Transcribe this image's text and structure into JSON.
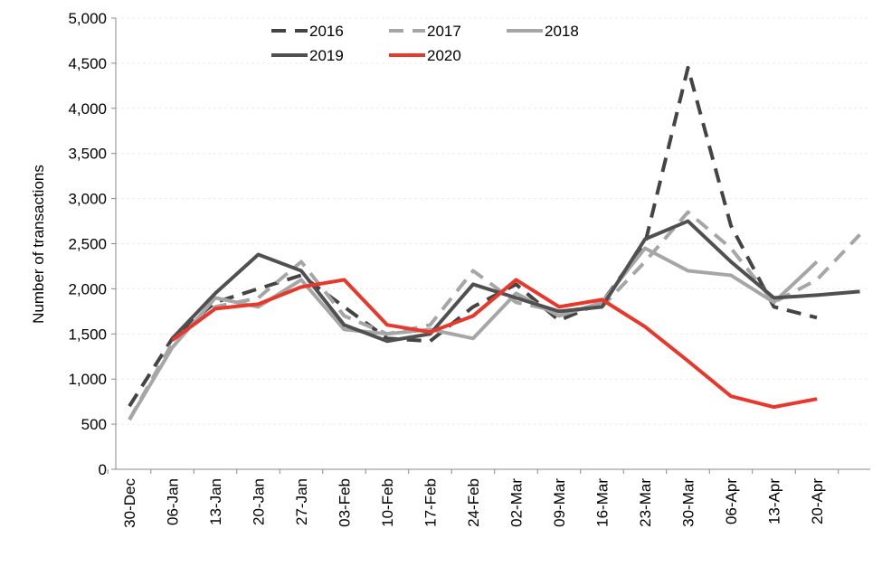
{
  "chart_data": {
    "type": "line",
    "y_label": "Number of transactions",
    "categories": [
      "30-Dec",
      "06-Jan",
      "13-Jan",
      "20-Jan",
      "27-Jan",
      "03-Feb",
      "10-Feb",
      "17-Feb",
      "24-Feb",
      "02-Mar",
      "09-Mar",
      "16-Mar",
      "23-Mar",
      "30-Mar",
      "06-Apr",
      "13-Apr",
      "20-Apr",
      null
    ],
    "series": [
      {
        "name": "2016",
        "color": "#444444",
        "dash": true,
        "values": [
          700,
          1450,
          1850,
          2000,
          2150,
          1800,
          1450,
          1420,
          1800,
          2050,
          1650,
          1850,
          2500,
          4450,
          2700,
          1800,
          1680,
          null
        ]
      },
      {
        "name": "2017",
        "color": "#a6a6a6",
        "dash": true,
        "values": [
          550,
          1400,
          1800,
          1900,
          2300,
          1700,
          1500,
          1600,
          2200,
          1850,
          1750,
          1800,
          2300,
          2850,
          2450,
          1850,
          2100,
          2600
        ]
      },
      {
        "name": "2018",
        "color": "#a6a6a6",
        "dash": false,
        "values": [
          550,
          1350,
          1900,
          1800,
          2100,
          1550,
          1500,
          1550,
          1450,
          1950,
          1700,
          1850,
          2450,
          2200,
          2150,
          1850,
          2300,
          null
        ]
      },
      {
        "name": "2019",
        "color": "#505050",
        "dash": false,
        "values": [
          null,
          1450,
          1950,
          2380,
          2200,
          1600,
          1420,
          1500,
          2050,
          1900,
          1750,
          1800,
          2550,
          2750,
          2300,
          1900,
          1930,
          1970
        ]
      },
      {
        "name": "2020",
        "color": "#e8382c",
        "dash": false,
        "values": [
          null,
          1430,
          1780,
          1830,
          2020,
          2100,
          1600,
          1520,
          1700,
          2100,
          1800,
          1880,
          1580,
          1200,
          810,
          690,
          780,
          null
        ]
      }
    ],
    "ylim": [
      0,
      5000
    ],
    "yticks": [
      0,
      {
        "value": 500,
        "label": "500"
      },
      {
        "value": 1000,
        "label": "1,000"
      },
      {
        "value": 1500,
        "label": "1,500"
      },
      {
        "value": 2000,
        "label": "2,000"
      },
      {
        "value": 2500,
        "label": "2,500"
      },
      {
        "value": 3000,
        "label": "3,000"
      },
      {
        "value": 3500,
        "label": "3,500"
      },
      {
        "value": 4000,
        "label": "4,000"
      },
      {
        "value": 4500,
        "label": "4,500"
      },
      {
        "value": 5000,
        "label": "5,000"
      }
    ],
    "grid": true
  }
}
